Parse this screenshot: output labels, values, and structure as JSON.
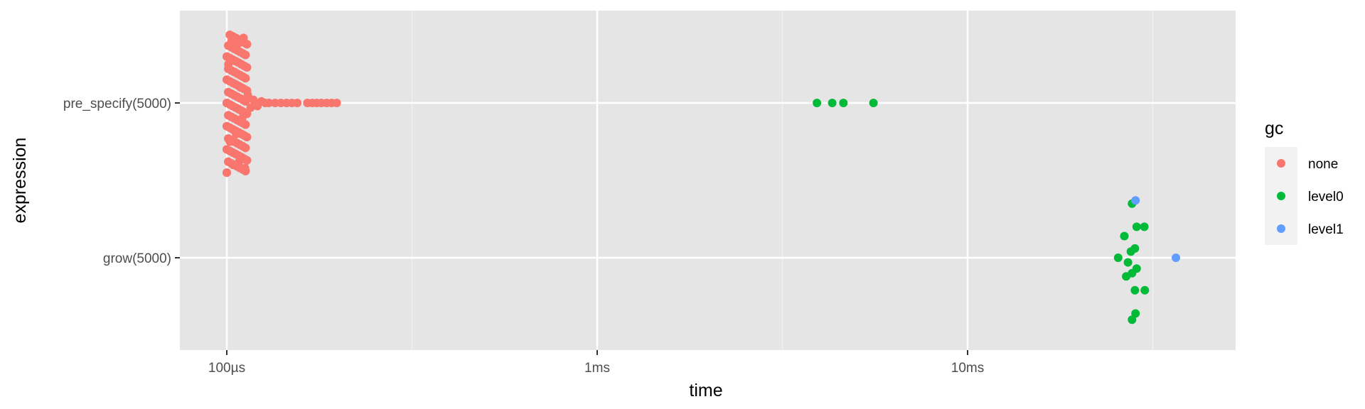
{
  "chart_data": {
    "type": "scatter",
    "xlabel": "time",
    "ylabel": "expression",
    "x_scale": "log10",
    "x_unit": "seconds",
    "xlim": [
      7.8e-05,
      0.046
    ],
    "x_ticks": [
      {
        "value": 0.0001,
        "label": "100µs"
      },
      {
        "value": 0.001,
        "label": "1ms"
      },
      {
        "value": 0.01,
        "label": "10ms"
      }
    ],
    "categories": [
      "pre_specify(5000)",
      "grow(5000)"
    ],
    "grid": true,
    "legend": {
      "title": "gc",
      "position": "right",
      "entries": [
        {
          "label": "none",
          "color": "#F8766D"
        },
        {
          "label": "level0",
          "color": "#00BA38"
        },
        {
          "label": "level1",
          "color": "#619CFF"
        }
      ]
    },
    "series": [
      {
        "name": "none",
        "color": "#F8766D",
        "points": [
          {
            "category": "pre_specify(5000)",
            "x": 0.0001,
            "jitter": 0.0
          },
          {
            "category": "pre_specify(5000)",
            "x": 0.000101,
            "jitter": 0.25
          },
          {
            "category": "pre_specify(5000)",
            "x": 0.000102,
            "jitter": -0.25
          },
          {
            "category": "pre_specify(5000)",
            "x": 0.000103,
            "jitter": 0.4
          },
          {
            "category": "pre_specify(5000)",
            "x": 0.000104,
            "jitter": -0.4
          },
          {
            "category": "pre_specify(5000)",
            "x": 0.000105,
            "jitter": 0.2
          },
          {
            "category": "pre_specify(5000)",
            "x": 0.000106,
            "jitter": -0.2
          },
          {
            "category": "pre_specify(5000)",
            "x": 0.000107,
            "jitter": 0.38
          },
          {
            "category": "pre_specify(5000)",
            "x": 0.000108,
            "jitter": -0.38
          },
          {
            "category": "pre_specify(5000)",
            "x": 0.000109,
            "jitter": 0.1
          },
          {
            "category": "pre_specify(5000)",
            "x": 0.00011,
            "jitter": -0.1
          },
          {
            "category": "pre_specify(5000)",
            "x": 0.000111,
            "jitter": 0.42
          },
          {
            "category": "pre_specify(5000)",
            "x": 0.000112,
            "jitter": -0.42
          },
          {
            "category": "pre_specify(5000)",
            "x": 0.000114,
            "jitter": 0.05
          },
          {
            "category": "pre_specify(5000)",
            "x": 0.000116,
            "jitter": -0.03
          },
          {
            "category": "pre_specify(5000)",
            "x": 0.000118,
            "jitter": 0.02
          },
          {
            "category": "pre_specify(5000)",
            "x": 0.000121,
            "jitter": -0.02
          },
          {
            "category": "pre_specify(5000)",
            "x": 0.000124,
            "jitter": 0.01
          },
          {
            "category": "pre_specify(5000)",
            "x": 0.000127,
            "jitter": 0.0
          },
          {
            "category": "pre_specify(5000)",
            "x": 0.00013,
            "jitter": 0.0
          },
          {
            "category": "pre_specify(5000)",
            "x": 0.000135,
            "jitter": 0.0
          },
          {
            "category": "pre_specify(5000)",
            "x": 0.00014,
            "jitter": 0.0
          },
          {
            "category": "pre_specify(5000)",
            "x": 0.000145,
            "jitter": 0.0
          },
          {
            "category": "pre_specify(5000)",
            "x": 0.00015,
            "jitter": 0.0
          },
          {
            "category": "pre_specify(5000)",
            "x": 0.000155,
            "jitter": 0.0
          },
          {
            "category": "pre_specify(5000)",
            "x": 0.000165,
            "jitter": 0.0
          },
          {
            "category": "pre_specify(5000)",
            "x": 0.00017,
            "jitter": 0.0
          },
          {
            "category": "pre_specify(5000)",
            "x": 0.000175,
            "jitter": 0.0
          },
          {
            "category": "pre_specify(5000)",
            "x": 0.00018,
            "jitter": 0.0
          },
          {
            "category": "pre_specify(5000)",
            "x": 0.000186,
            "jitter": 0.0
          },
          {
            "category": "pre_specify(5000)",
            "x": 0.000192,
            "jitter": 0.0
          },
          {
            "category": "pre_specify(5000)",
            "x": 0.000198,
            "jitter": 0.0
          }
        ]
      },
      {
        "name": "level0",
        "color": "#00BA38",
        "points": [
          {
            "category": "pre_specify(5000)",
            "x": 0.00392,
            "jitter": 0.0
          },
          {
            "category": "pre_specify(5000)",
            "x": 0.00431,
            "jitter": 0.0
          },
          {
            "category": "pre_specify(5000)",
            "x": 0.00462,
            "jitter": 0.0
          },
          {
            "category": "pre_specify(5000)",
            "x": 0.00557,
            "jitter": 0.0
          },
          {
            "category": "grow(5000)",
            "x": 0.0278,
            "jitter": 0.35
          },
          {
            "category": "grow(5000)",
            "x": 0.03,
            "jitter": 0.2
          },
          {
            "category": "grow(5000)",
            "x": 0.0286,
            "jitter": 0.2
          },
          {
            "category": "grow(5000)",
            "x": 0.0265,
            "jitter": 0.14
          },
          {
            "category": "grow(5000)",
            "x": 0.0283,
            "jitter": 0.06
          },
          {
            "category": "grow(5000)",
            "x": 0.0276,
            "jitter": 0.04
          },
          {
            "category": "grow(5000)",
            "x": 0.0255,
            "jitter": 0.0
          },
          {
            "category": "grow(5000)",
            "x": 0.0271,
            "jitter": -0.03
          },
          {
            "category": "grow(5000)",
            "x": 0.0286,
            "jitter": -0.07
          },
          {
            "category": "grow(5000)",
            "x": 0.0278,
            "jitter": -0.1
          },
          {
            "category": "grow(5000)",
            "x": 0.0268,
            "jitter": -0.12
          },
          {
            "category": "grow(5000)",
            "x": 0.0283,
            "jitter": -0.21
          },
          {
            "category": "grow(5000)",
            "x": 0.0301,
            "jitter": -0.21
          },
          {
            "category": "grow(5000)",
            "x": 0.0284,
            "jitter": -0.36
          },
          {
            "category": "grow(5000)",
            "x": 0.0278,
            "jitter": -0.4
          }
        ]
      },
      {
        "name": "level1",
        "color": "#619CFF",
        "points": [
          {
            "category": "grow(5000)",
            "x": 0.0284,
            "jitter": 0.37
          },
          {
            "category": "grow(5000)",
            "x": 0.0365,
            "jitter": 0.0
          }
        ]
      }
    ]
  }
}
